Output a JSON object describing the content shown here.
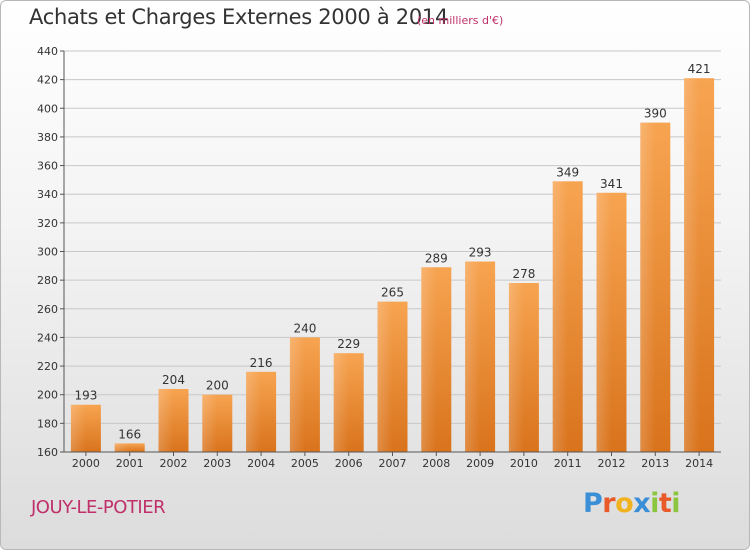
{
  "header": {
    "title": "Achats et Charges Externes 2000 à 2014",
    "subtitle": "(en milliers d'€)"
  },
  "commune": "JOUY-LE-POTIER",
  "logo": {
    "text": "Proxiti",
    "letters": [
      {
        "ch": "P",
        "color": "#3b8fd6"
      },
      {
        "ch": "r",
        "color": "#e85a2a"
      },
      {
        "ch": "o",
        "color": "#f0b21f"
      },
      {
        "ch": "x",
        "color": "#3b8fd6"
      },
      {
        "ch": "i",
        "color": "#8cc63e"
      },
      {
        "ch": "t",
        "color": "#e85a2a"
      },
      {
        "ch": "i",
        "color": "#8cc63e"
      }
    ]
  },
  "chart_data": {
    "type": "bar",
    "title": "Achats et Charges Externes 2000 à 2014",
    "subtitle": "(en milliers d'€)",
    "categories": [
      "2000",
      "2001",
      "2002",
      "2003",
      "2004",
      "2005",
      "2006",
      "2007",
      "2008",
      "2009",
      "2010",
      "2011",
      "2012",
      "2013",
      "2014"
    ],
    "values": [
      193,
      166,
      204,
      200,
      216,
      240,
      229,
      265,
      289,
      293,
      278,
      349,
      341,
      390,
      421
    ],
    "data_labels": [
      "193",
      "166",
      "204",
      "200",
      "216",
      "240",
      "229",
      "265",
      "289",
      "293",
      "278",
      "349",
      "341",
      "390",
      "421"
    ],
    "ylim": [
      160,
      440
    ],
    "yticks": [
      160,
      180,
      200,
      220,
      240,
      260,
      280,
      300,
      320,
      340,
      360,
      380,
      400,
      420,
      440
    ],
    "grid": true,
    "legend": "none",
    "bar_color_top": "#f7a451",
    "bar_color_bottom": "#d9731c",
    "grid_color": "#c8c8c8"
  }
}
